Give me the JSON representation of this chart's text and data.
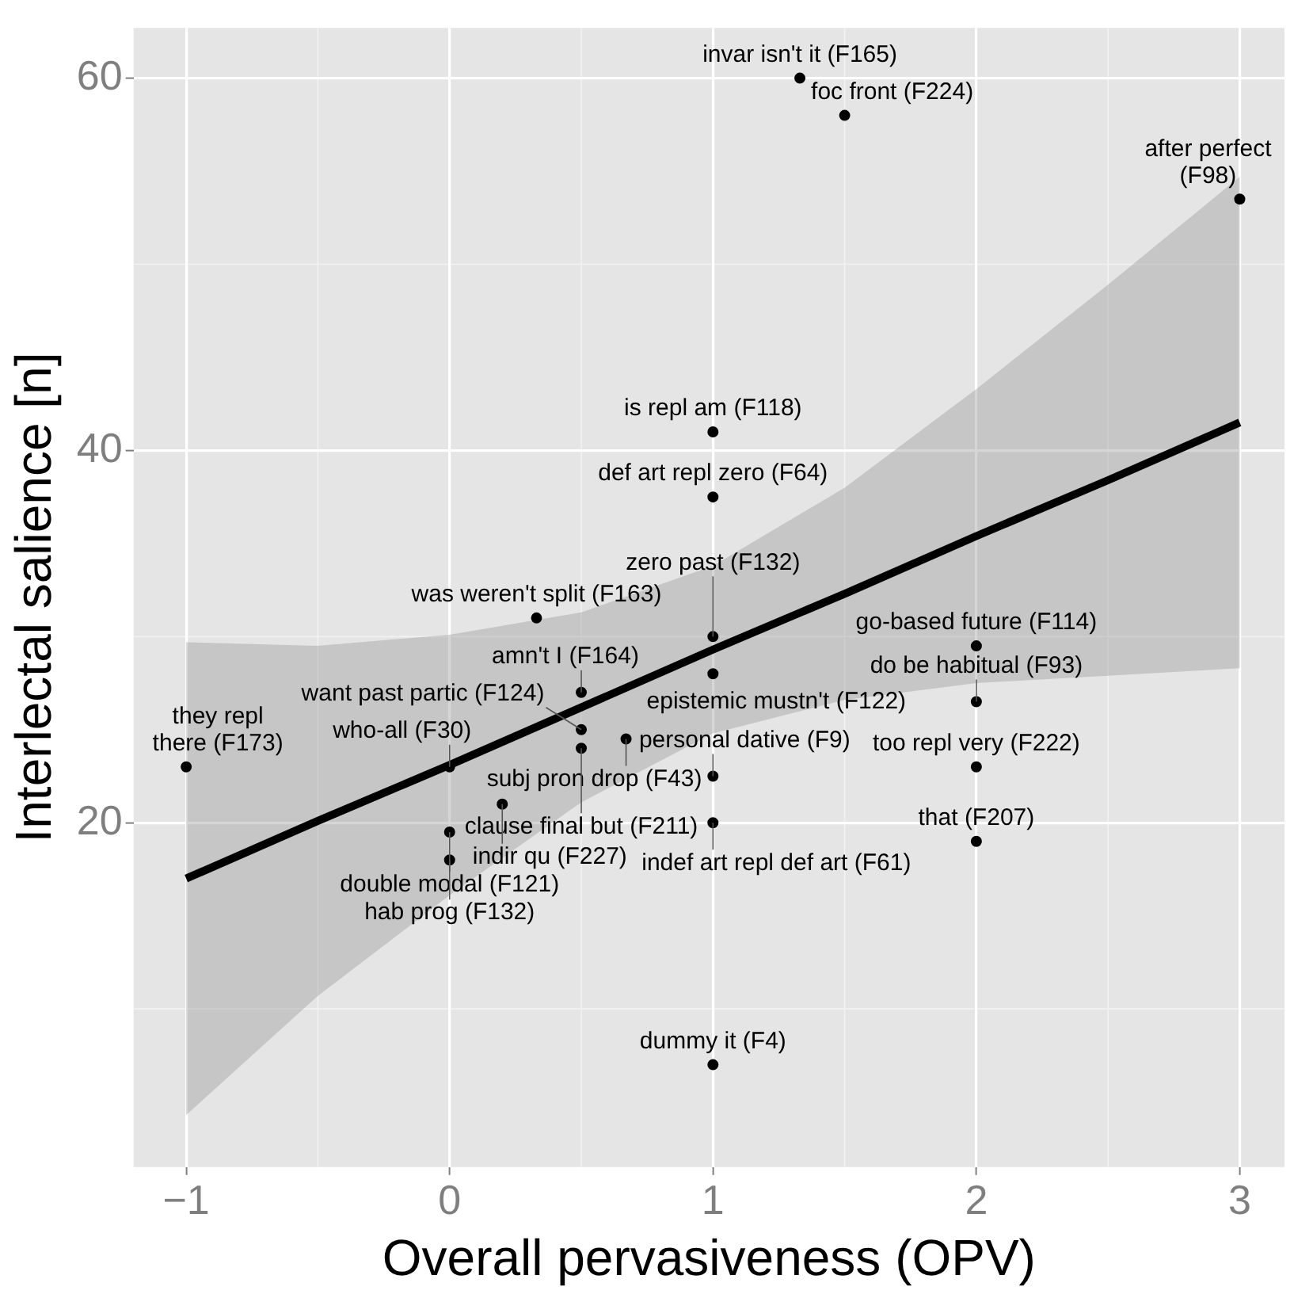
{
  "chart_data": {
    "type": "scatter",
    "xlabel": "Overall pervasiveness (OPV)",
    "ylabel": "Interlectal salience [n]",
    "xlim": [
      -1.2,
      3.17
    ],
    "ylim": [
      1.5,
      62.7
    ],
    "xticks": [
      -1,
      0,
      1,
      2,
      3
    ],
    "yticks": [
      20,
      40,
      60
    ],
    "grid": true,
    "legend": false,
    "series": [
      {
        "type": "scatter",
        "marker": "circle",
        "color": "#000000",
        "x": [
          1.33,
          1.5,
          3,
          1,
          1,
          0.33,
          1,
          1,
          2,
          0.5,
          2,
          0.5,
          0.67,
          0.5,
          1,
          -1,
          0,
          2,
          0.2,
          1,
          0,
          2,
          0,
          1
        ],
        "values": [
          60,
          58,
          53.5,
          41,
          37.5,
          31,
          30,
          28,
          29.5,
          27,
          26.5,
          25,
          24.5,
          24,
          22.5,
          23,
          23,
          23,
          21,
          20,
          19.5,
          19,
          18,
          7
        ]
      },
      {
        "type": "line",
        "color": "#000000",
        "x": [
          -1,
          -0.5,
          0,
          0.5,
          1,
          1.5,
          2,
          2.5,
          3
        ],
        "values": [
          17,
          20.1,
          23.1,
          26.2,
          29.3,
          32.3,
          35.4,
          38.4,
          41.5
        ],
        "lower": [
          4.3,
          10.7,
          16.1,
          21.1,
          24.8,
          26.6,
          27.5,
          27.9,
          28.3
        ],
        "upper": [
          29.7,
          29.5,
          30.1,
          31.3,
          33.8,
          38,
          43.3,
          48.9,
          54.7
        ]
      }
    ],
    "annotations": [
      {
        "text": "invar isn't it (F165)",
        "x": 1.33,
        "y": 60
      },
      {
        "text": "foc front (F224)",
        "x": 1.5,
        "y": 58
      },
      {
        "text": "after perfect\n(F98)",
        "x": 3,
        "y": 53.5
      },
      {
        "text": "is repl am (F118)",
        "x": 1,
        "y": 41
      },
      {
        "text": "def art repl zero (F64)",
        "x": 1,
        "y": 37.5
      },
      {
        "text": "was weren't split (F163)",
        "x": 0.33,
        "y": 31
      },
      {
        "text": "zero past (F132)",
        "x": 1,
        "y": 30
      },
      {
        "text": "epistemic mustn't (F122)",
        "x": 1,
        "y": 28
      },
      {
        "text": "go-based future (F114)",
        "x": 2,
        "y": 29.5
      },
      {
        "text": "amn't I (F164)",
        "x": 0.5,
        "y": 27
      },
      {
        "text": "do be habitual (F93)",
        "x": 2,
        "y": 26.5
      },
      {
        "text": "want past partic (F124)",
        "x": 0.5,
        "y": 25
      },
      {
        "text": "subj pron drop (F43)",
        "x": 0.67,
        "y": 24.5
      },
      {
        "text": "clause final but (F211)",
        "x": 0.5,
        "y": 24
      },
      {
        "text": "personal dative (F9)",
        "x": 1,
        "y": 22.5
      },
      {
        "text": "they repl\nthere (F173)",
        "x": -1,
        "y": 23
      },
      {
        "text": "who-all (F30)",
        "x": 0,
        "y": 23
      },
      {
        "text": "too repl very (F222)",
        "x": 2,
        "y": 23
      },
      {
        "text": "indir qu (F227)",
        "x": 0.2,
        "y": 21
      },
      {
        "text": "indef art repl def art (F61)",
        "x": 1,
        "y": 20
      },
      {
        "text": "double modal (F121)",
        "x": 0,
        "y": 19.5
      },
      {
        "text": "that (F207)",
        "x": 2,
        "y": 19
      },
      {
        "text": "hab prog (F132)",
        "x": 0,
        "y": 18
      },
      {
        "text": "dummy it (F4)",
        "x": 1,
        "y": 7
      }
    ]
  }
}
